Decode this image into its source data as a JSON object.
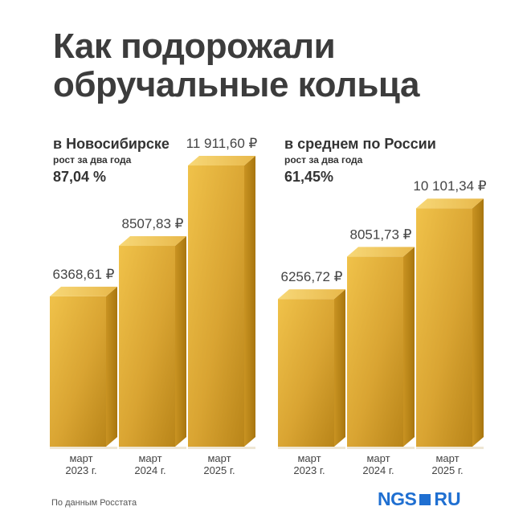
{
  "title_lines": [
    "Как подорожали",
    "обручальные кольца"
  ],
  "source": "По данным Росстата",
  "logo": {
    "brand": "NGS",
    "domain": "RU",
    "color": "#1f6fd1"
  },
  "colors": {
    "gold_front_light": "#f0c24a",
    "gold_front_dark": "#b98519",
    "gold_top": "#f7d878",
    "gold_side": "#a8760f"
  },
  "chart_data": [
    {
      "type": "bar",
      "title": "в Новосибирске",
      "subtitle": "рост за два года",
      "growth": "87,04 %",
      "categories": [
        [
          "март",
          "2023 г."
        ],
        [
          "март",
          "2024 г."
        ],
        [
          "март",
          "2025 г."
        ]
      ],
      "values": [
        6368.61,
        8507.83,
        11911.6
      ],
      "value_labels": [
        "6368,61 ₽",
        "8507,83 ₽",
        "11 911,60 ₽"
      ]
    },
    {
      "type": "bar",
      "title": "в среднем по России",
      "subtitle": "рост за два года",
      "growth": "61,45%",
      "categories": [
        [
          "март",
          "2023 г."
        ],
        [
          "март",
          "2024 г."
        ],
        [
          "март",
          "2025 г."
        ]
      ],
      "values": [
        6256.72,
        8051.73,
        10101.34
      ],
      "value_labels": [
        "6256,72 ₽",
        "8051,73 ₽",
        "10 101,34 ₽"
      ]
    }
  ]
}
